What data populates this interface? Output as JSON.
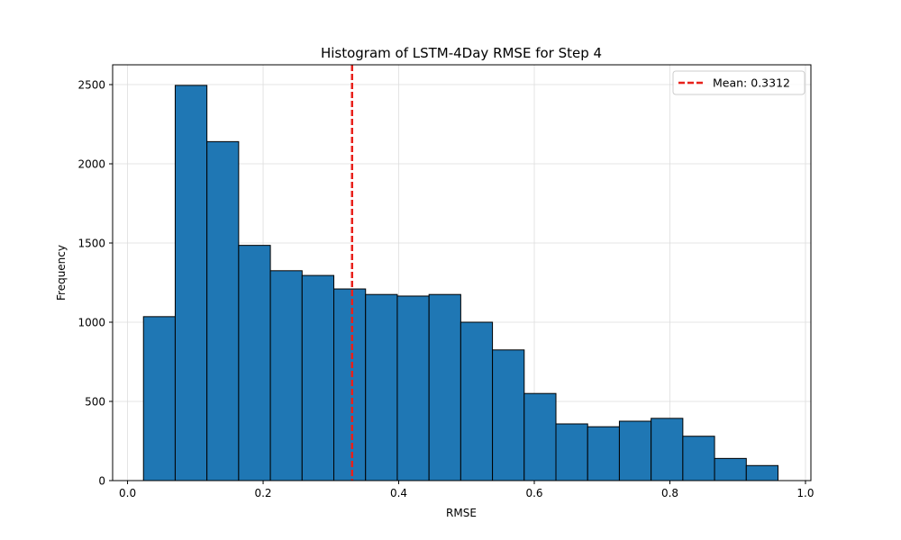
{
  "chart_data": {
    "type": "bar",
    "title": "Histogram of LSTM-4Day RMSE for Step 4",
    "xlabel": "RMSE",
    "ylabel": "Frequency",
    "xlim": [
      -0.022,
      1.008
    ],
    "ylim": [
      0,
      2625
    ],
    "xticks": [
      0.0,
      0.2,
      0.4,
      0.6,
      0.8,
      1.0
    ],
    "xtick_labels": [
      "0.0",
      "0.2",
      "0.4",
      "0.6",
      "0.8",
      "1.0"
    ],
    "yticks": [
      0,
      500,
      1000,
      1500,
      2000,
      2500
    ],
    "ytick_labels": [
      "0",
      "500",
      "1000",
      "1500",
      "2000",
      "2500"
    ],
    "grid": true,
    "legend_position": "top-right",
    "bin_edges": [
      0.0235,
      0.0703,
      0.1171,
      0.1639,
      0.2107,
      0.2575,
      0.3043,
      0.3511,
      0.3979,
      0.4447,
      0.4915,
      0.5383,
      0.5851,
      0.6319,
      0.6787,
      0.7255,
      0.7723,
      0.8191,
      0.8659,
      0.9127,
      0.9595
    ],
    "values": [
      1035,
      2495,
      2140,
      1485,
      1325,
      1295,
      1210,
      1175,
      1165,
      1175,
      1000,
      825,
      550,
      358,
      340,
      375,
      393,
      280,
      140,
      95
    ],
    "bar_color": "#1f77b4",
    "bar_edge_color": "#000000",
    "mean": {
      "value": 0.3312,
      "label": "Mean: 0.3312",
      "color": "#e8211b",
      "style": "dashed"
    }
  }
}
